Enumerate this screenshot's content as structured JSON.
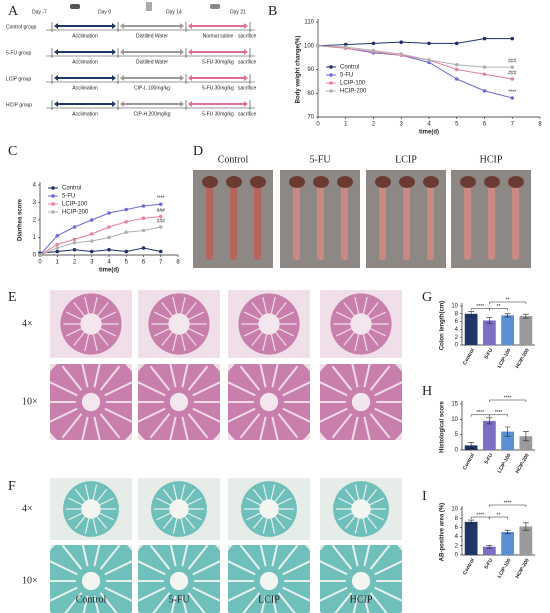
{
  "panel_letters": [
    "A",
    "B",
    "C",
    "D",
    "E",
    "F",
    "G",
    "H",
    "I"
  ],
  "panel_a": {
    "days": [
      "Day -7",
      "Day 0",
      "Day 14",
      "Day 21"
    ],
    "groups": [
      {
        "name": "Control group",
        "steps": [
          "Acclimation",
          "Distilled Water",
          "Normal saline",
          "sacrifice"
        ]
      },
      {
        "name": "5-FU group",
        "steps": [
          "Acclimation",
          "Distilled Water",
          "5-FU 30mg/kg",
          "sacrifice"
        ]
      },
      {
        "name": "LCIP group",
        "steps": [
          "Acclimation",
          "CIP-L 100mg/kg",
          "5-FU 30mg/kg",
          "sacrifice"
        ]
      },
      {
        "name": "HCIP group",
        "steps": [
          "Acclimation",
          "CIP-H 200mg/kg",
          "5-FU 30mg/kg",
          "sacrifice"
        ]
      }
    ]
  },
  "panel_d": {
    "labels": [
      "Control",
      "5-FU",
      "LCIP",
      "HCIP"
    ]
  },
  "panel_e": {
    "rows": [
      "4×",
      "10×"
    ]
  },
  "panel_f": {
    "rows": [
      "4×",
      "10×"
    ],
    "labels": [
      "Control",
      "5-FU",
      "LCIP",
      "HCIP"
    ]
  },
  "chart_data": [
    {
      "type": "line",
      "x_label": "time(d)",
      "y_label": "Body weight change(%)",
      "x": [
        0,
        1,
        2,
        3,
        4,
        5,
        6,
        7
      ],
      "xlim": [
        0,
        8
      ],
      "xticks": [
        0,
        1,
        2,
        3,
        4,
        5,
        6,
        7,
        8
      ],
      "ylim": [
        70,
        110
      ],
      "yticks": [
        70,
        80,
        90,
        100,
        110
      ],
      "legend": "lower left",
      "series": [
        {
          "name": "Control",
          "color": "#1f2f6b",
          "values": [
            100,
            100.5,
            101,
            101.5,
            101,
            101,
            103,
            103
          ]
        },
        {
          "name": "5-FU",
          "color": "#6b6bdc",
          "values": [
            100,
            99,
            97,
            96,
            93,
            86,
            81,
            78
          ]
        },
        {
          "name": "LCIP-100",
          "color": "#e8809a",
          "values": [
            100,
            99,
            97.5,
            96,
            94,
            90,
            88,
            86
          ]
        },
        {
          "name": "HCIP-200",
          "color": "#b0b0b0",
          "values": [
            100,
            99.5,
            98,
            96.5,
            94,
            92,
            91,
            91
          ]
        }
      ],
      "annotations": [
        "****",
        "###",
        "###"
      ]
    },
    {
      "type": "line",
      "x_label": "time(d)",
      "y_label": "Diarrhea score",
      "x": [
        0,
        1,
        2,
        3,
        4,
        5,
        6,
        7
      ],
      "xlim": [
        0,
        8
      ],
      "xticks": [
        0,
        1,
        2,
        3,
        4,
        5,
        6,
        7,
        8
      ],
      "ylim": [
        0,
        4
      ],
      "yticks": [
        0,
        1,
        2,
        3,
        4
      ],
      "legend": "upper left",
      "series": [
        {
          "name": "Control",
          "color": "#1f2f6b",
          "values": [
            0.1,
            0.2,
            0.3,
            0.2,
            0.3,
            0.2,
            0.4,
            0.2
          ]
        },
        {
          "name": "5-FU",
          "color": "#6b6bdc",
          "values": [
            0,
            1.1,
            1.6,
            2,
            2.4,
            2.6,
            2.8,
            2.9
          ]
        },
        {
          "name": "LCIP-100",
          "color": "#e8809a",
          "values": [
            0,
            0.6,
            0.9,
            1.2,
            1.6,
            1.9,
            2.1,
            2.2
          ]
        },
        {
          "name": "HCIP-200",
          "color": "#b0b0b0",
          "values": [
            0,
            0.4,
            0.7,
            0.8,
            1,
            1.3,
            1.4,
            1.6
          ]
        }
      ],
      "annotations": [
        "****",
        "###",
        "###"
      ]
    },
    {
      "type": "bar",
      "y_label": "Colon length(cm)",
      "categories": [
        "Control",
        "5-FU",
        "LCIP-100",
        "HCIP-200"
      ],
      "values": [
        8,
        6.3,
        7.6,
        7.4
      ],
      "errors": [
        0.6,
        0.7,
        0.4,
        0.5
      ],
      "colors": [
        "#1f3566",
        "#7b6fc4",
        "#5b8fd6",
        "#9a9a9a"
      ],
      "ylim": [
        0,
        10
      ],
      "yticks": [
        0,
        2,
        4,
        6,
        8,
        10
      ],
      "annotations": [
        "****",
        "**",
        "**"
      ]
    },
    {
      "type": "bar",
      "y_label": "Histological score",
      "categories": [
        "Control",
        "5-FU",
        "LCIP-100",
        "HCIP-200"
      ],
      "values": [
        1.5,
        9.5,
        6,
        4.5
      ],
      "errors": [
        1,
        1,
        1.5,
        1.5
      ],
      "colors": [
        "#1f3566",
        "#7b6fc4",
        "#5b8fd6",
        "#9a9a9a"
      ],
      "ylim": [
        0,
        15
      ],
      "yticks": [
        0,
        5,
        10,
        15
      ],
      "annotations": [
        "****",
        "****",
        "****"
      ]
    },
    {
      "type": "bar",
      "y_label": "AB-positive area (%)",
      "categories": [
        "Control",
        "5-FU",
        "LCIP-100",
        "HCIP-200"
      ],
      "values": [
        7.2,
        1.8,
        5,
        6.2
      ],
      "errors": [
        0.4,
        0.3,
        0.4,
        0.8
      ],
      "colors": [
        "#1f3566",
        "#7b6fc4",
        "#5b8fd6",
        "#9a9a9a"
      ],
      "ylim": [
        0,
        10
      ],
      "yticks": [
        0,
        2,
        4,
        6,
        8,
        10
      ],
      "annotations": [
        "****",
        "**",
        "****"
      ]
    }
  ]
}
